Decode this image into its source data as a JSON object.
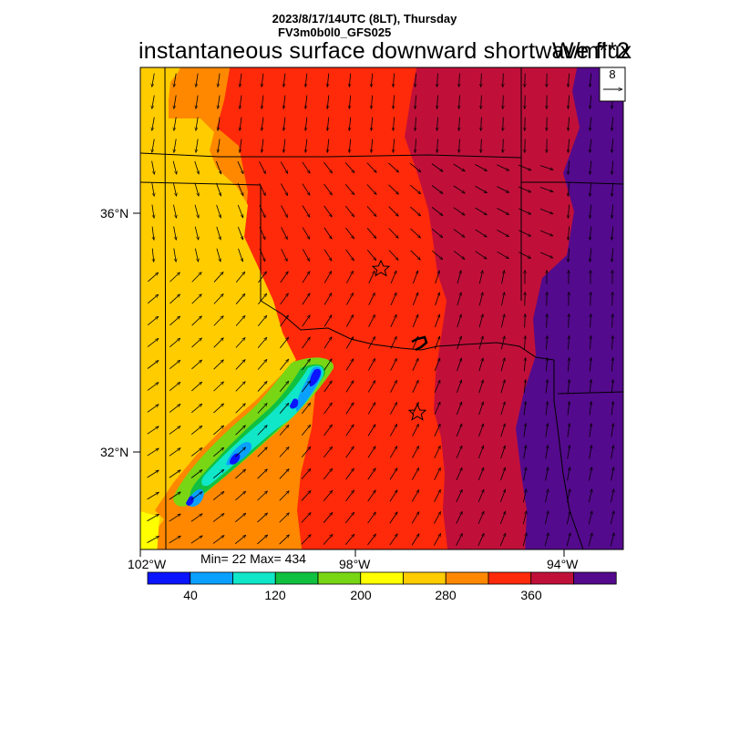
{
  "header": {
    "line1": "2023/8/17/14UTC (8LT), Thursday",
    "line2": "FV3m0b0l0_GFS025",
    "title": "instantaneous surface downward shortwave flux",
    "units": "W/m**2"
  },
  "vector_legend": {
    "value": "8"
  },
  "axes": {
    "lat_labels": [
      "36°N",
      "32°N"
    ],
    "lon_labels": [
      "102°W",
      "98°W",
      "94°W"
    ]
  },
  "stats": {
    "text": "Min= 22 Max= 434"
  },
  "colorbar": {
    "colors": [
      "#0a14ff",
      "#0aa0ff",
      "#10e6c8",
      "#10c040",
      "#78d614",
      "#ffff00",
      "#ffcc00",
      "#ff8800",
      "#ff2a0a",
      "#c0103a",
      "#540a8c"
    ],
    "tick_labels": [
      "40",
      "120",
      "200",
      "280",
      "360"
    ]
  },
  "map_data": {
    "field": "instantaneous surface downward shortwave flux",
    "units": "W/m**2",
    "min": 22,
    "max": 434,
    "color_levels": [
      40,
      80,
      120,
      160,
      200,
      240,
      280,
      320,
      360,
      400
    ],
    "markers": [
      "star",
      "star"
    ]
  }
}
